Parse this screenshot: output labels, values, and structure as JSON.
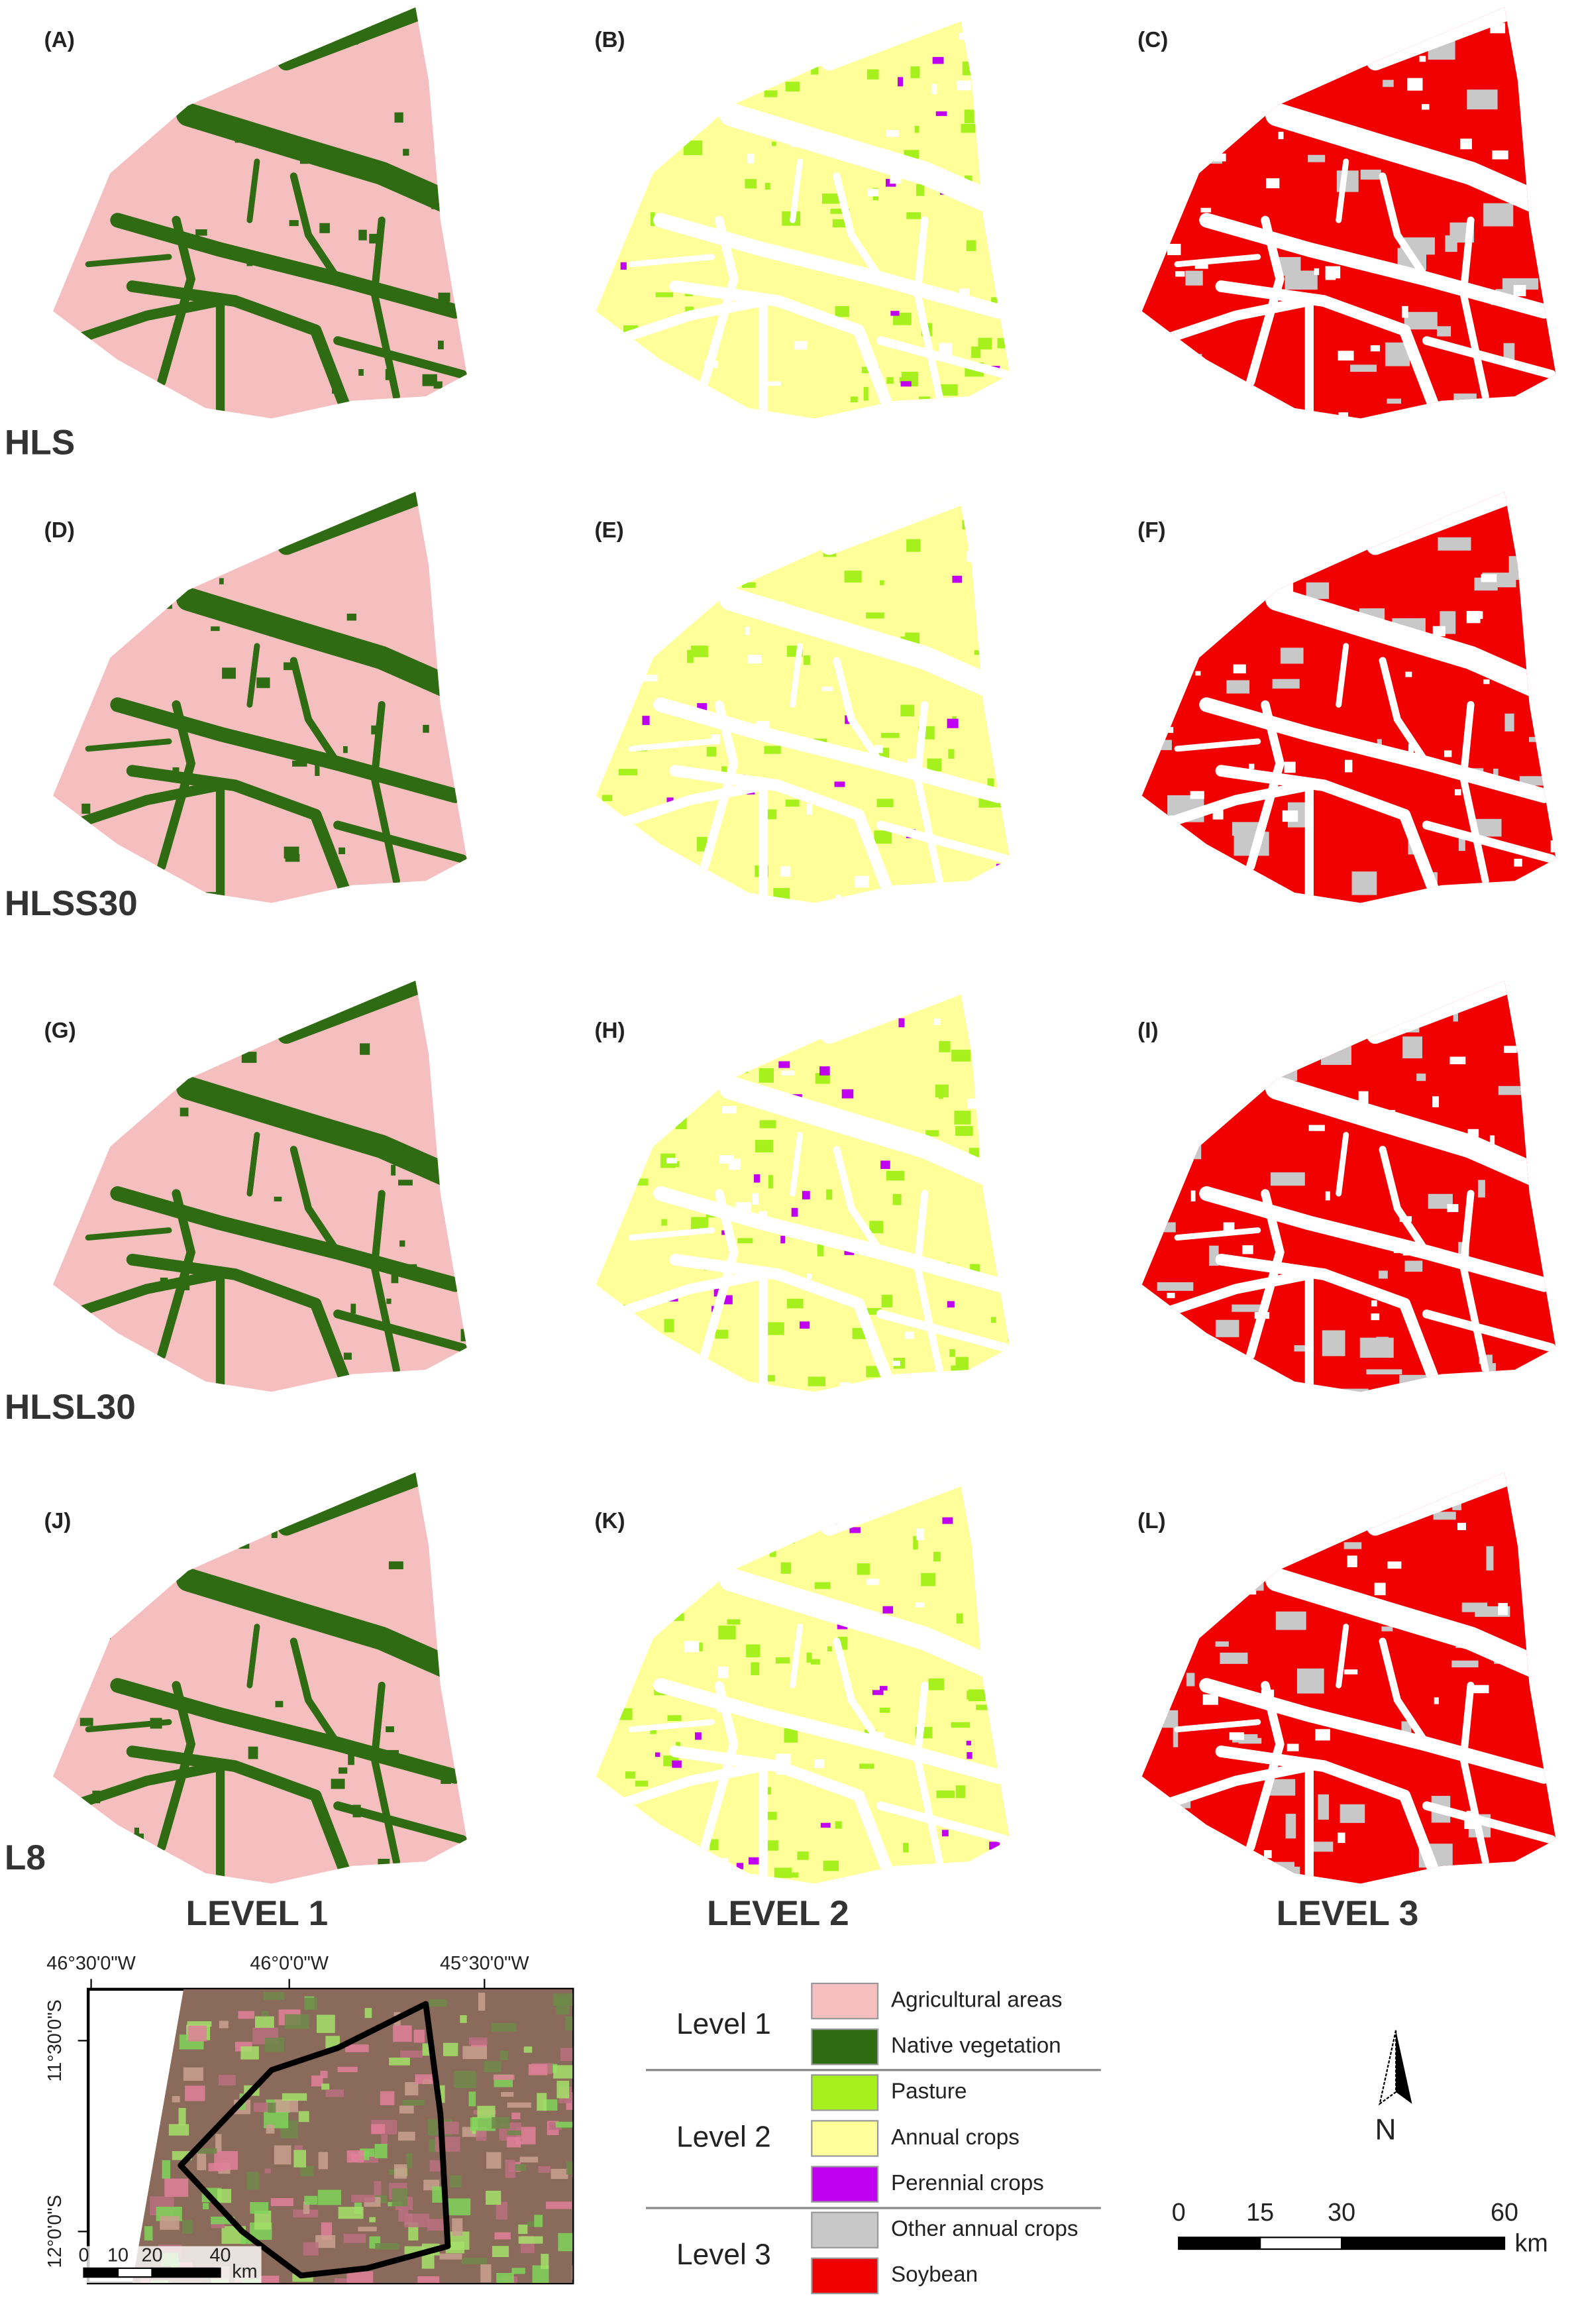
{
  "panels": [
    "(A)",
    "(B)",
    "(C)",
    "(D)",
    "(E)",
    "(F)",
    "(G)",
    "(H)",
    "(I)",
    "(J)",
    "(K)",
    "(L)"
  ],
  "row_labels": [
    "HLS",
    "HLSS30",
    "HLSL30",
    "L8"
  ],
  "column_labels": [
    "LEVEL 1",
    "LEVEL 2",
    "LEVEL 3"
  ],
  "inset": {
    "x_labels": [
      "46°30'0\"W",
      "46°0'0\"W",
      "45°30'0\"W"
    ],
    "y_labels": [
      "11°30'0\"S",
      "12°0'0\"S"
    ],
    "scale_ticks": [
      0,
      10,
      20,
      40
    ],
    "scale_unit": "km"
  },
  "legend": [
    {
      "level": "Level 1",
      "items": [
        {
          "label": "Agricultural areas",
          "color": "#f5bfbf"
        },
        {
          "label": "Native vegetation",
          "color": "#2e6b12"
        }
      ]
    },
    {
      "level": "Level 2",
      "items": [
        {
          "label": "Pasture",
          "color": "#a6f01e"
        },
        {
          "label": "Annual crops",
          "color": "#ffff99"
        },
        {
          "label": "Perennial crops",
          "color": "#c000f0"
        }
      ]
    },
    {
      "level": "Level 3",
      "items": [
        {
          "label": "Other annual crops",
          "color": "#c8c8c8"
        },
        {
          "label": "Soybean",
          "color": "#f00000"
        }
      ]
    }
  ],
  "scale_bar": {
    "ticks": [
      0,
      15,
      30,
      60
    ],
    "unit": "km"
  },
  "north_label": "N"
}
